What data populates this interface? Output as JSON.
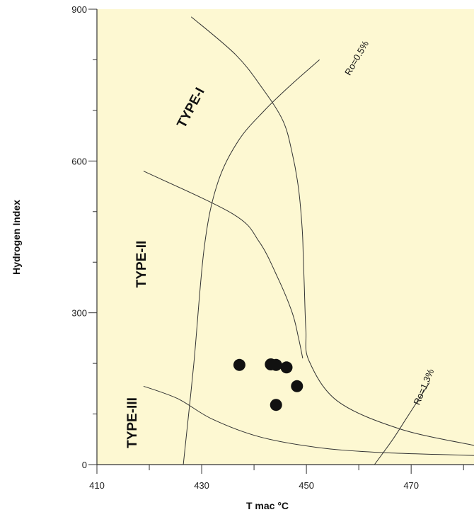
{
  "chart_data": {
    "type": "scatter",
    "title": "",
    "xlabel": "T mac °C",
    "ylabel": "Hydrogen Index",
    "xlim": [
      410,
      482
    ],
    "ylim": [
      0,
      900
    ],
    "x_ticks": [
      410,
      430,
      450,
      470
    ],
    "x_minor_ticks": [
      420,
      440,
      460,
      480
    ],
    "y_ticks": [
      0,
      300,
      600,
      900
    ],
    "y_minor_ticks": [
      100,
      200,
      400,
      500,
      700,
      800
    ],
    "grid": false,
    "background_color": "#fdf8d2",
    "point_color": "#111111",
    "line_color": "#333333",
    "points": [
      {
        "x": 437.2,
        "y": 197
      },
      {
        "x": 443.2,
        "y": 198
      },
      {
        "x": 444.2,
        "y": 197
      },
      {
        "x": 446.2,
        "y": 192
      },
      {
        "x": 448.2,
        "y": 155
      },
      {
        "x": 444.2,
        "y": 118
      }
    ],
    "region_labels": [
      "TYPE-I",
      "TYPE-II",
      "TYPE-III"
    ],
    "curve_labels": [
      "Ro=0.5%",
      "Ro=1.3%"
    ],
    "boundary_curves": [
      [
        [
          418.9,
          580
        ],
        [
          436.0,
          495
        ],
        [
          441.0,
          440
        ],
        [
          444.5,
          370
        ],
        [
          447.3,
          300
        ],
        [
          448.5,
          250
        ],
        [
          449.3,
          210
        ]
      ],
      [
        [
          428.0,
          885
        ],
        [
          436.5,
          810
        ],
        [
          441.5,
          745
        ],
        [
          445.5,
          680
        ],
        [
          447.3,
          615
        ],
        [
          448.5,
          545
        ],
        [
          449.2,
          465
        ],
        [
          449.4,
          410
        ],
        [
          449.6,
          350
        ],
        [
          449.9,
          265
        ],
        [
          450.5,
          205
        ],
        [
          456.0,
          125
        ],
        [
          468.0,
          70
        ],
        [
          482,
          38
        ]
      ],
      [
        [
          426.5,
          0
        ],
        [
          428.5,
          200
        ],
        [
          430.5,
          430
        ],
        [
          433.0,
          555
        ],
        [
          437.0,
          640
        ],
        [
          442.0,
          700
        ],
        [
          447.0,
          750
        ],
        [
          452.5,
          800
        ]
      ],
      [
        [
          418.9,
          155
        ],
        [
          425.5,
          130
        ],
        [
          432.0,
          90
        ],
        [
          441.0,
          55
        ],
        [
          452.0,
          34
        ],
        [
          464.0,
          24
        ],
        [
          482,
          18
        ]
      ],
      [
        [
          463.0,
          0
        ],
        [
          466.5,
          50
        ],
        [
          469.0,
          90
        ],
        [
          471.0,
          122
        ],
        [
          473.5,
          162
        ]
      ]
    ]
  }
}
